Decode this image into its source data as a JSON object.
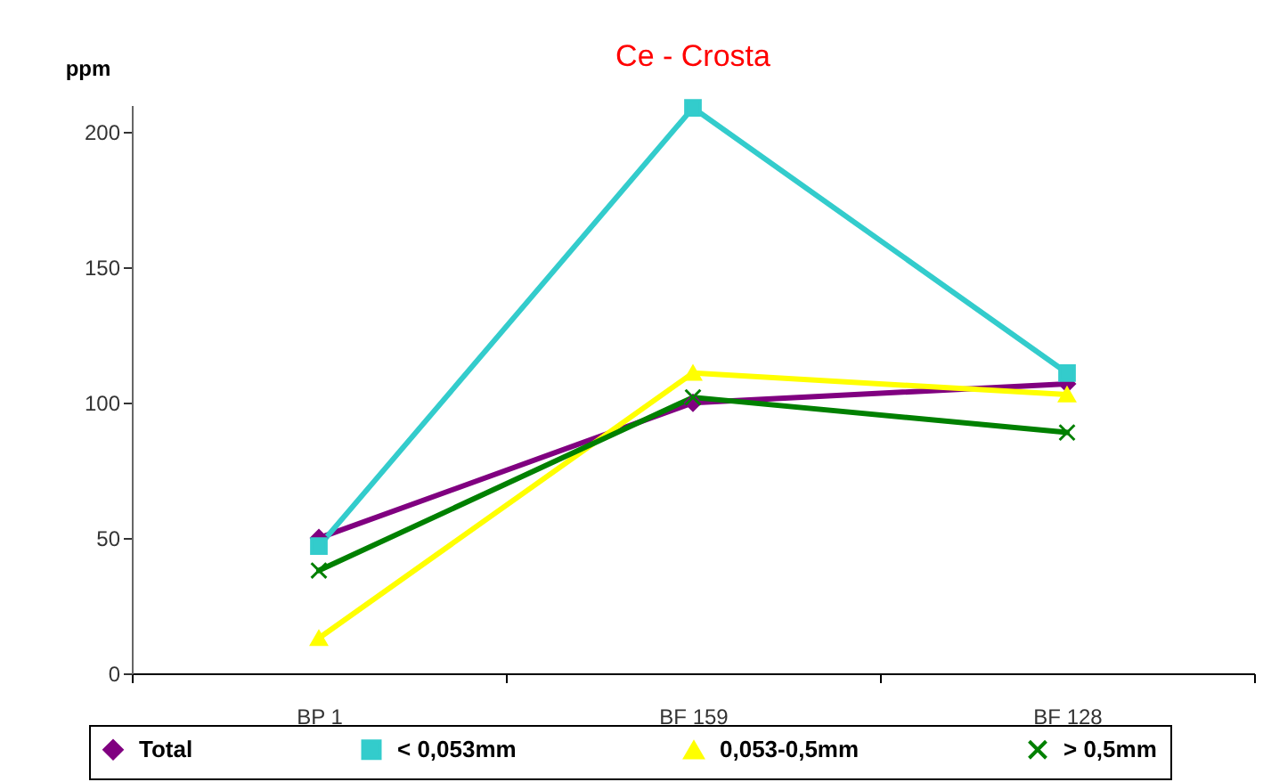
{
  "chart_data": {
    "type": "line",
    "title": "Ce - Crosta",
    "ylabel": "ppm",
    "categories": [
      "BP 1",
      "BF 159",
      "BF 128"
    ],
    "series": [
      {
        "name": "Total",
        "color": "#800080",
        "marker": "diamond",
        "values": [
          50,
          100,
          107
        ]
      },
      {
        "name": "< 0,053mm",
        "color": "#33cccc",
        "marker": "square",
        "values": [
          47,
          209,
          111
        ]
      },
      {
        "name": "0,053-0,5mm",
        "color": "#ffff00",
        "marker": "triangle",
        "values": [
          13,
          111,
          103
        ]
      },
      {
        "name": "> 0,5mm",
        "color": "#008000",
        "marker": "cross",
        "values": [
          38,
          102,
          89
        ]
      }
    ],
    "ylim": [
      0,
      210
    ],
    "yticks": [
      0,
      50,
      100,
      150,
      200
    ],
    "grid": false,
    "legend": "bottom",
    "line_style": "solid"
  }
}
